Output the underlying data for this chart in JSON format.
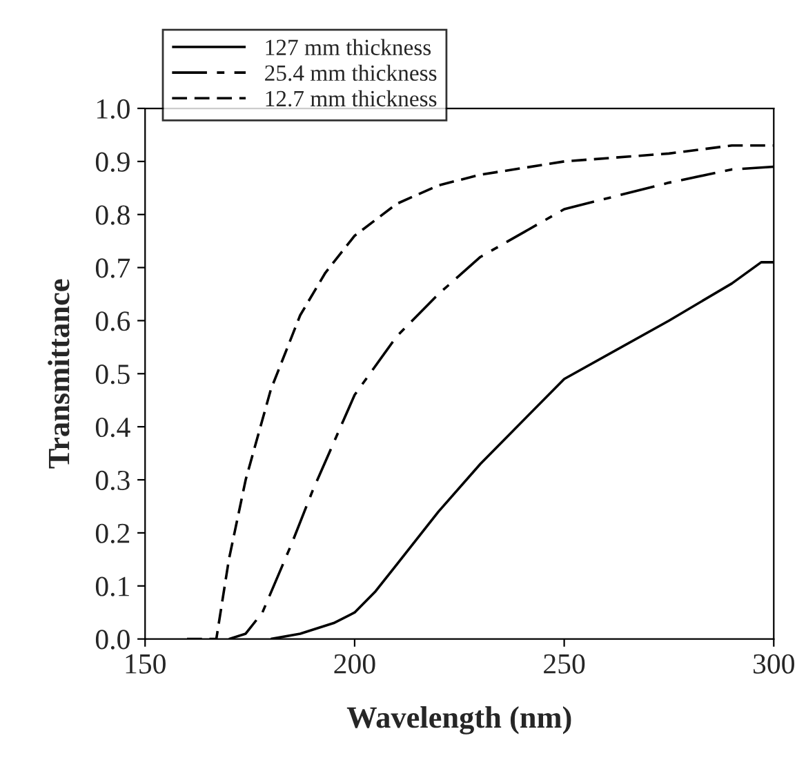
{
  "chart_data": {
    "type": "line",
    "xlabel": "Wavelength (nm)",
    "ylabel": "Transmittance",
    "xlim": [
      150,
      300
    ],
    "xticks": [
      150,
      200,
      250,
      300
    ],
    "ylim": [
      0,
      1
    ],
    "yticks": [
      {
        "value": 0,
        "label": "0.0"
      },
      {
        "value": 0.1,
        "label": "0.1"
      },
      {
        "value": 0.2,
        "label": "0.2"
      },
      {
        "value": 0.3,
        "label": "0.3"
      },
      {
        "value": 0.4,
        "label": "0.4"
      },
      {
        "value": 0.5,
        "label": "0.5"
      },
      {
        "value": 0.6,
        "label": "0.6"
      },
      {
        "value": 0.7,
        "label": "0.7"
      },
      {
        "value": 0.8,
        "label": "0.8"
      },
      {
        "value": 0.9,
        "label": "0.9"
      },
      {
        "value": 1,
        "label": "1.0"
      }
    ],
    "grid": false,
    "legend": "top left",
    "series": [
      {
        "name": "127 mm thickness",
        "color": "#000000",
        "line_style": "solid",
        "x": [
          180,
          187,
          195,
          200,
          205,
          210,
          220,
          230,
          250,
          275,
          290,
          297,
          300
        ],
        "values": [
          0,
          0.01,
          0.03,
          0.05,
          0.09,
          0.14,
          0.24,
          0.33,
          0.49,
          0.6,
          0.67,
          0.71,
          0.71
        ]
      },
      {
        "name": "25.4 mm thickness",
        "color": "#000000",
        "line_style": "long_dashed",
        "x": [
          170,
          174,
          178,
          185,
          190,
          200,
          210,
          220,
          230,
          250,
          275,
          290,
          300
        ],
        "values": [
          0,
          0.01,
          0.05,
          0.18,
          0.28,
          0.46,
          0.57,
          0.65,
          0.72,
          0.81,
          0.86,
          0.885,
          0.89
        ]
      },
      {
        "name": "12.7 mm thickness",
        "color": "#000000",
        "line_style": "dashed",
        "x": [
          160,
          167,
          170,
          174,
          180,
          187,
          193,
          200,
          210,
          220,
          230,
          250,
          275,
          290,
          300
        ],
        "values": [
          0,
          0,
          0.15,
          0.3,
          0.47,
          0.61,
          0.69,
          0.76,
          0.82,
          0.855,
          0.875,
          0.9,
          0.915,
          0.93,
          0.93
        ]
      }
    ]
  }
}
